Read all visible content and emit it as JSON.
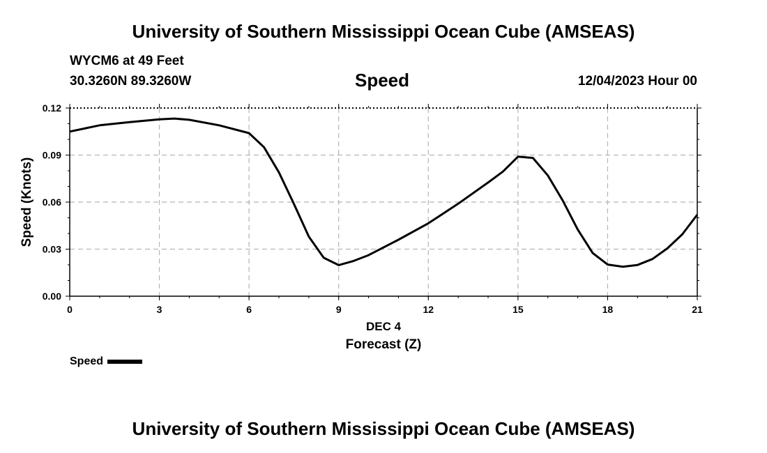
{
  "header": {
    "title_top": "University of Southern Mississippi Ocean Cube (AMSEAS)",
    "station": "WYCM6 at 49 Feet",
    "coords": "30.3260N  89.3260W",
    "chart_title": "Speed",
    "datetime": "12/04/2023 Hour 00",
    "title_bottom": "University of Southern Mississippi Ocean Cube (AMSEAS)"
  },
  "legend": {
    "label": "Speed"
  },
  "chart_data": {
    "type": "line",
    "title": "Speed",
    "xlabel": "Forecast (Z)",
    "xlabel_date": "DEC 4",
    "ylabel": "Speed (Knots)",
    "xlim": [
      0,
      21
    ],
    "ylim": [
      0,
      0.12
    ],
    "x_ticks": [
      "0",
      "3",
      "6",
      "9",
      "12",
      "15",
      "18",
      "21"
    ],
    "y_ticks": [
      "0.00",
      "0.03",
      "0.06",
      "0.09",
      "0.12"
    ],
    "grid": true,
    "series": [
      {
        "name": "Speed",
        "x": [
          0,
          1,
          2,
          3,
          3.5,
          4,
          5,
          6,
          6.5,
          7,
          7.5,
          8,
          8.5,
          9,
          9.5,
          10,
          11,
          12,
          13,
          14,
          14.5,
          15,
          15.5,
          16,
          16.5,
          17,
          17.5,
          18,
          18.5,
          19,
          19.5,
          20,
          20.5,
          21
        ],
        "values": [
          0.105,
          0.109,
          0.111,
          0.1128,
          0.1133,
          0.1125,
          0.109,
          0.104,
          0.095,
          0.079,
          0.059,
          0.038,
          0.0245,
          0.0198,
          0.0225,
          0.0262,
          0.036,
          0.0465,
          0.059,
          0.0725,
          0.0795,
          0.089,
          0.0882,
          0.077,
          0.061,
          0.0425,
          0.0275,
          0.0202,
          0.0188,
          0.0199,
          0.0237,
          0.0305,
          0.0395,
          0.052
        ]
      }
    ]
  }
}
